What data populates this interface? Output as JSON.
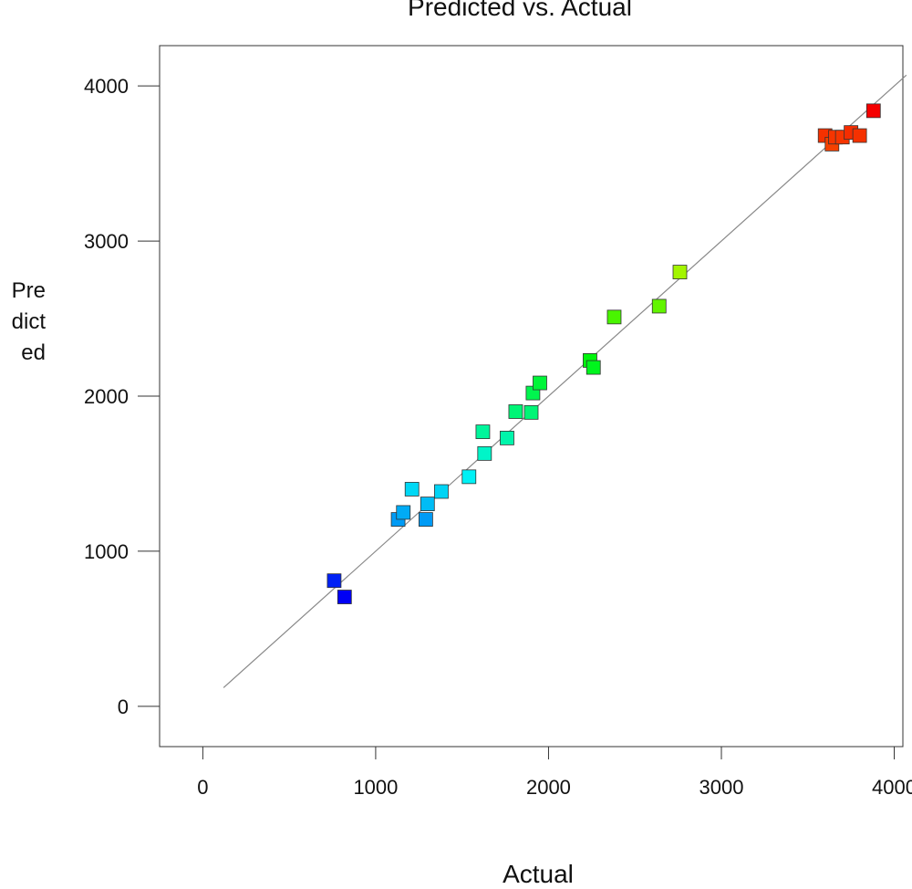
{
  "chart_data": {
    "type": "scatter",
    "title": "Predicted vs. Actual",
    "xlabel": "Actual",
    "ylabel_lines": [
      "Pre",
      "dict",
      "ed"
    ],
    "xlim": [
      -250,
      4050
    ],
    "ylim": [
      -260,
      4260
    ],
    "xticks": [
      0,
      1000,
      2000,
      3000,
      4000
    ],
    "yticks": [
      0,
      1000,
      2000,
      3000,
      4000
    ],
    "xtick_labels": [
      "0",
      "1000",
      "2000",
      "3000",
      "4000"
    ],
    "ytick_labels": [
      "0",
      "1000",
      "2000",
      "3000",
      "4000"
    ],
    "grid": false,
    "reference_line": {
      "x": [
        120,
        4070
      ],
      "y": [
        120,
        4070
      ],
      "color": "#888888"
    },
    "color_scale": {
      "low": "#0000d0",
      "high": "#ff0000",
      "by": "predicted"
    },
    "points": [
      {
        "x": 760,
        "y": 810
      },
      {
        "x": 820,
        "y": 705
      },
      {
        "x": 1130,
        "y": 1205
      },
      {
        "x": 1160,
        "y": 1250
      },
      {
        "x": 1210,
        "y": 1400
      },
      {
        "x": 1290,
        "y": 1205
      },
      {
        "x": 1300,
        "y": 1305
      },
      {
        "x": 1380,
        "y": 1385
      },
      {
        "x": 1540,
        "y": 1480
      },
      {
        "x": 1620,
        "y": 1770
      },
      {
        "x": 1630,
        "y": 1630
      },
      {
        "x": 1760,
        "y": 1730
      },
      {
        "x": 1810,
        "y": 1900
      },
      {
        "x": 1900,
        "y": 1895
      },
      {
        "x": 1910,
        "y": 2020
      },
      {
        "x": 1950,
        "y": 2085
      },
      {
        "x": 2240,
        "y": 2230
      },
      {
        "x": 2260,
        "y": 2185
      },
      {
        "x": 2380,
        "y": 2510
      },
      {
        "x": 2640,
        "y": 2580
      },
      {
        "x": 2760,
        "y": 2800
      },
      {
        "x": 3600,
        "y": 3680
      },
      {
        "x": 3640,
        "y": 3625
      },
      {
        "x": 3660,
        "y": 3670
      },
      {
        "x": 3700,
        "y": 3670
      },
      {
        "x": 3750,
        "y": 3700
      },
      {
        "x": 3800,
        "y": 3680
      },
      {
        "x": 3880,
        "y": 3840
      }
    ]
  }
}
